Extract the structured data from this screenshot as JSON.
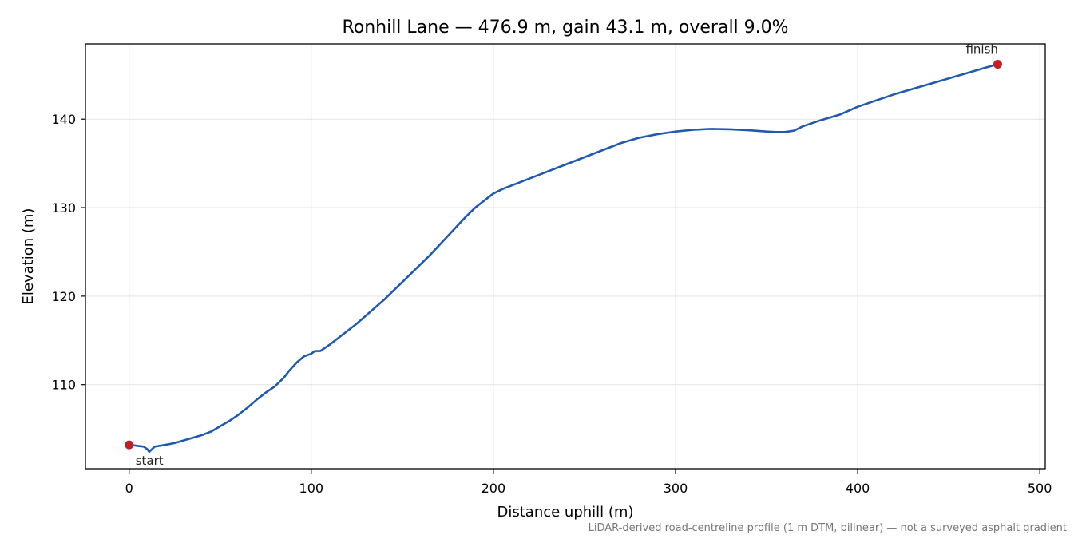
{
  "chart_data": {
    "type": "line",
    "title": "Ronhill Lane — 476.9 m, gain 43.1 m, overall 9.0%",
    "xlabel": "Distance uphill (m)",
    "ylabel": "Elevation (m)",
    "xlim": [
      -24,
      503
    ],
    "ylim": [
      100.5,
      148.5
    ],
    "x_ticks": [
      0,
      100,
      200,
      300,
      400,
      500
    ],
    "y_ticks": [
      110,
      120,
      130,
      140
    ],
    "grid": true,
    "series": [
      {
        "color": "#2059b0",
        "points": [
          [
            0,
            103.2
          ],
          [
            4,
            103.1
          ],
          [
            8,
            103.0
          ],
          [
            10,
            102.7
          ],
          [
            11,
            102.4
          ],
          [
            12,
            102.6
          ],
          [
            14,
            103.0
          ],
          [
            20,
            103.2
          ],
          [
            25,
            103.4
          ],
          [
            30,
            103.7
          ],
          [
            35,
            104.0
          ],
          [
            40,
            104.3
          ],
          [
            45,
            104.7
          ],
          [
            50,
            105.3
          ],
          [
            55,
            105.9
          ],
          [
            60,
            106.6
          ],
          [
            65,
            107.4
          ],
          [
            70,
            108.3
          ],
          [
            75,
            109.1
          ],
          [
            80,
            109.8
          ],
          [
            85,
            110.8
          ],
          [
            88,
            111.6
          ],
          [
            92,
            112.5
          ],
          [
            96,
            113.2
          ],
          [
            100,
            113.5
          ],
          [
            102,
            113.8
          ],
          [
            105,
            113.8
          ],
          [
            110,
            114.5
          ],
          [
            115,
            115.3
          ],
          [
            120,
            116.1
          ],
          [
            125,
            116.9
          ],
          [
            130,
            117.8
          ],
          [
            135,
            118.7
          ],
          [
            140,
            119.6
          ],
          [
            145,
            120.6
          ],
          [
            150,
            121.6
          ],
          [
            155,
            122.6
          ],
          [
            160,
            123.6
          ],
          [
            165,
            124.6
          ],
          [
            170,
            125.7
          ],
          [
            175,
            126.8
          ],
          [
            180,
            127.9
          ],
          [
            185,
            129.0
          ],
          [
            190,
            130.0
          ],
          [
            195,
            130.8
          ],
          [
            200,
            131.6
          ],
          [
            205,
            132.1
          ],
          [
            210,
            132.5
          ],
          [
            220,
            133.3
          ],
          [
            230,
            134.1
          ],
          [
            240,
            134.9
          ],
          [
            250,
            135.7
          ],
          [
            260,
            136.5
          ],
          [
            270,
            137.3
          ],
          [
            280,
            137.9
          ],
          [
            290,
            138.3
          ],
          [
            300,
            138.6
          ],
          [
            310,
            138.8
          ],
          [
            320,
            138.9
          ],
          [
            330,
            138.85
          ],
          [
            340,
            138.75
          ],
          [
            350,
            138.6
          ],
          [
            355,
            138.55
          ],
          [
            360,
            138.55
          ],
          [
            365,
            138.7
          ],
          [
            370,
            139.2
          ],
          [
            380,
            139.9
          ],
          [
            390,
            140.5
          ],
          [
            400,
            141.4
          ],
          [
            410,
            142.1
          ],
          [
            420,
            142.8
          ],
          [
            430,
            143.4
          ],
          [
            440,
            144.0
          ],
          [
            450,
            144.6
          ],
          [
            460,
            145.2
          ],
          [
            470,
            145.8
          ],
          [
            476.9,
            146.2
          ]
        ]
      }
    ],
    "annotations": [
      {
        "label": "start",
        "x": 0,
        "y": 103.2,
        "marker_color": "#c01f27"
      },
      {
        "label": "finish",
        "x": 476.9,
        "y": 146.2,
        "marker_color": "#c01f27"
      }
    ],
    "footnote": "LiDAR-derived road-centreline profile (1 m DTM, bilinear) — not a surveyed asphalt gradient"
  }
}
